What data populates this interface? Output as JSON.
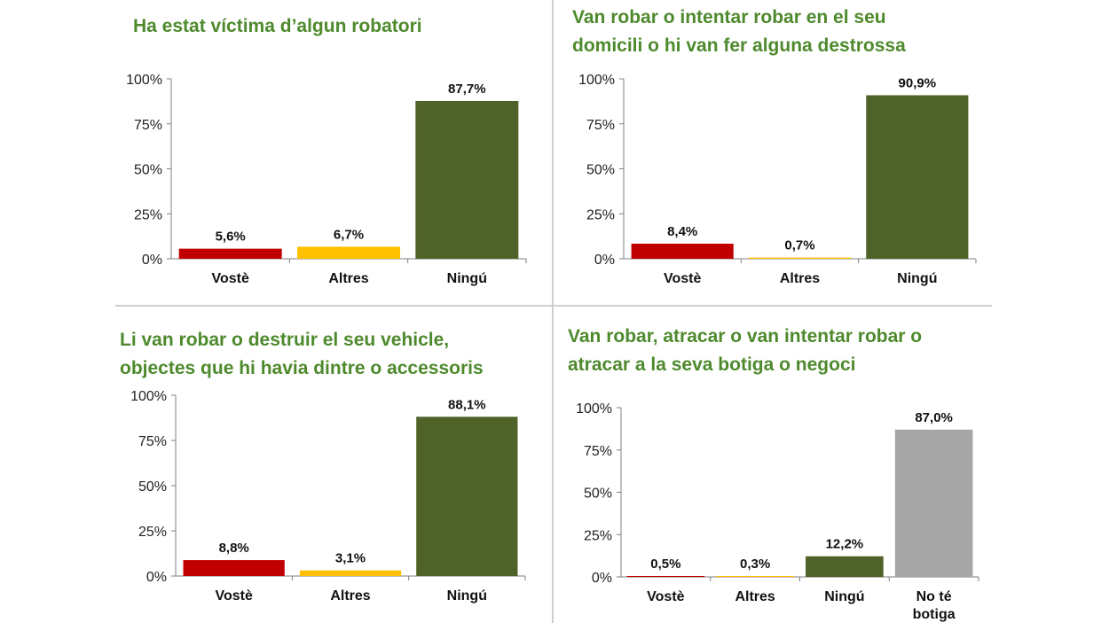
{
  "chart_data": [
    {
      "type": "bar",
      "title_lines": [
        "Ha estat víctima d’algun robatori"
      ],
      "categories": [
        [
          "Vostè"
        ],
        [
          "Altres"
        ],
        [
          "Ningú"
        ]
      ],
      "values": [
        5.6,
        6.7,
        87.7
      ],
      "value_labels": [
        "5,6%",
        "6,7%",
        "87,7%"
      ],
      "colors": [
        "#c00000",
        "#ffc000",
        "#4f6228"
      ],
      "yticks": [
        "0%",
        "25%",
        "50%",
        "75%",
        "100%"
      ],
      "ylim": [
        0,
        100
      ]
    },
    {
      "type": "bar",
      "title_lines": [
        "Van robar o intentar robar en el seu",
        "domicili o hi van fer alguna destrossa"
      ],
      "categories": [
        [
          "Vostè"
        ],
        [
          "Altres"
        ],
        [
          "Ningú"
        ]
      ],
      "values": [
        8.4,
        0.7,
        90.9
      ],
      "value_labels": [
        "8,4%",
        "0,7%",
        "90,9%"
      ],
      "colors": [
        "#c00000",
        "#ffc000",
        "#4f6228"
      ],
      "yticks": [
        "0%",
        "25%",
        "50%",
        "75%",
        "100%"
      ],
      "ylim": [
        0,
        100
      ]
    },
    {
      "type": "bar",
      "title_lines": [
        "Li van robar o destruir el seu vehicle,",
        "objectes que hi havia dintre o accessoris"
      ],
      "categories": [
        [
          "Vostè"
        ],
        [
          "Altres"
        ],
        [
          "Ningú"
        ]
      ],
      "values": [
        8.8,
        3.1,
        88.1
      ],
      "value_labels": [
        "8,8%",
        "3,1%",
        "88,1%"
      ],
      "colors": [
        "#c00000",
        "#ffc000",
        "#4f6228"
      ],
      "yticks": [
        "0%",
        "25%",
        "50%",
        "75%",
        "100%"
      ],
      "ylim": [
        0,
        100
      ]
    },
    {
      "type": "bar",
      "title_lines": [
        "Van robar, atracar o van intentar robar  o",
        "atracar a la seva botiga o negoci"
      ],
      "categories": [
        [
          "Vostè"
        ],
        [
          "Altres"
        ],
        [
          "Ningú"
        ],
        [
          "No té",
          "botiga"
        ]
      ],
      "values": [
        0.5,
        0.3,
        12.2,
        87.0
      ],
      "value_labels": [
        "0,5%",
        "0,3%",
        "12,2%",
        "87,0%"
      ],
      "colors": [
        "#c00000",
        "#ffc000",
        "#4f6228",
        "#a6a6a6"
      ],
      "yticks": [
        "0%",
        "25%",
        "50%",
        "75%",
        "100%"
      ],
      "ylim": [
        0,
        100
      ]
    }
  ]
}
